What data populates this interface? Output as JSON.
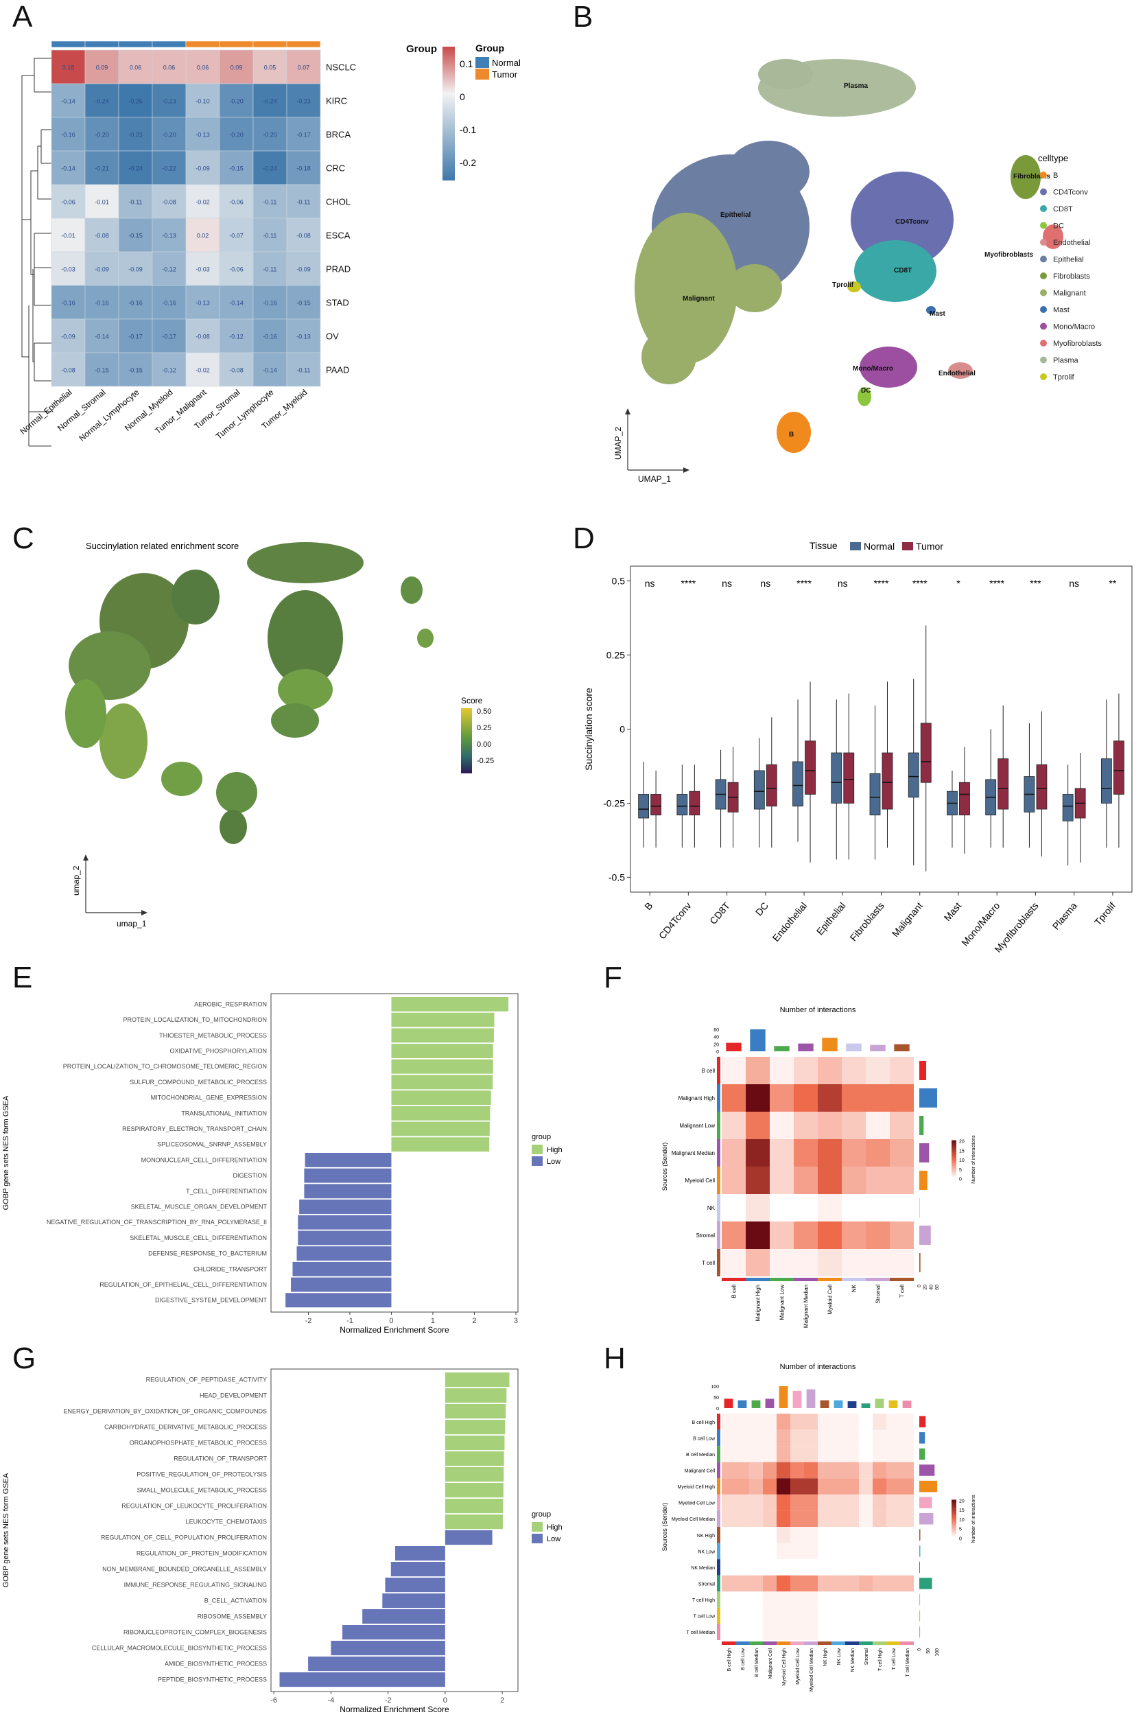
{
  "panels": {
    "A": "A",
    "B": "B",
    "C": "C",
    "D": "D",
    "E": "E",
    "F": "F",
    "G": "G",
    "H": "H"
  },
  "panel_a": {
    "legend_group_title": "Group",
    "legend_items": [
      {
        "label": "Normal",
        "color": "#3f7fb5"
      },
      {
        "label": "Tumor",
        "color": "#ee8a2b"
      }
    ],
    "scale_ticks": [
      "0.1",
      "0",
      "-0.1",
      "-0.2"
    ],
    "column_group_label": "Group"
  },
  "panel_b": {
    "legend_title": "celltype",
    "axis_x": "UMAP_1",
    "axis_y": "UMAP_2",
    "cluster_labels": [
      "Plasma",
      "Epithelial",
      "CD4Tconv",
      "CD8T",
      "Tprolif",
      "Malignant",
      "Fibroblasts",
      "Myofibroblasts",
      "Mast",
      "Mono/Macro",
      "DC",
      "Endothelial",
      "B"
    ],
    "legend": [
      {
        "label": "B",
        "color": "#f08a1c"
      },
      {
        "label": "CD4Tconv",
        "color": "#6a6fb0"
      },
      {
        "label": "CD8T",
        "color": "#3aa8a6"
      },
      {
        "label": "DC",
        "color": "#8cc63f"
      },
      {
        "label": "Endothelial",
        "color": "#d98c8c"
      },
      {
        "label": "Epithelial",
        "color": "#6c7fa3"
      },
      {
        "label": "Fibroblasts",
        "color": "#7a9a3a"
      },
      {
        "label": "Malignant",
        "color": "#9aae6a"
      },
      {
        "label": "Mast",
        "color": "#3a6fb0"
      },
      {
        "label": "Mono/Macro",
        "color": "#9c4fa0"
      },
      {
        "label": "Myofibroblasts",
        "color": "#e07070"
      },
      {
        "label": "Plasma",
        "color": "#a8b898"
      },
      {
        "label": "Tprolif",
        "color": "#c8c820"
      }
    ]
  },
  "panel_c": {
    "title": "Succinylation related enrichment score",
    "legend_title": "Score",
    "legend_ticks": [
      "0.50",
      "0.25",
      "0.00",
      "-0.25"
    ],
    "axis_x": "umap_1",
    "axis_y": "umap_2"
  },
  "panel_e": {
    "legend_title": "group",
    "legend_items": [
      {
        "label": "High",
        "color": "#a6d17a"
      },
      {
        "label": "Low",
        "color": "#6575b8"
      }
    ]
  },
  "panel_f": {
    "title": "Number of interactions",
    "ylabel": "Sources (Sender)",
    "legend_title": "Number of interactions",
    "legend_ticks": [
      "20",
      "15",
      "10",
      "5",
      "0"
    ]
  },
  "panel_g": {
    "legend_title": "group",
    "legend_items": [
      {
        "label": "High",
        "color": "#a6d17a"
      },
      {
        "label": "Low",
        "color": "#6575b8"
      }
    ]
  },
  "panel_h": {
    "title": "Number of interactions",
    "ylabel": "Sources (Sender)",
    "legend_title": "Number of interactions",
    "legend_ticks": [
      "20",
      "15",
      "10",
      "5",
      "0"
    ]
  },
  "chart_data": [
    {
      "id": "A",
      "type": "heatmap",
      "columns": [
        "Normal_Epithelial",
        "Normal_Stromal",
        "Normal_Lymphocyte",
        "Normal_Myeloid",
        "Tumor_Malignant",
        "Tumor_Stromal",
        "Tumor_Lymphocyte",
        "Tumor_Myeloid"
      ],
      "column_groups": [
        "Normal",
        "Normal",
        "Normal",
        "Normal",
        "Tumor",
        "Tumor",
        "Tumor",
        "Tumor"
      ],
      "rows": [
        "NSCLC",
        "KIRC",
        "BRCA",
        "CRC",
        "CHOL",
        "ESCA",
        "PRAD",
        "STAD",
        "OV",
        "PAAD"
      ],
      "values": [
        [
          0.18,
          0.09,
          0.06,
          0.06,
          0.06,
          0.09,
          0.05,
          0.07
        ],
        [
          -0.14,
          -0.24,
          -0.26,
          -0.23,
          -0.1,
          -0.2,
          -0.24,
          -0.23
        ],
        [
          -0.16,
          -0.2,
          -0.23,
          -0.2,
          -0.13,
          -0.2,
          -0.2,
          -0.17
        ],
        [
          -0.14,
          -0.21,
          -0.24,
          -0.22,
          -0.09,
          -0.15,
          -0.24,
          -0.18
        ],
        [
          -0.06,
          -0.01,
          -0.11,
          -0.08,
          -0.02,
          -0.06,
          -0.11,
          -0.11
        ],
        [
          -0.01,
          -0.08,
          -0.15,
          -0.13,
          0.02,
          -0.07,
          -0.11,
          -0.08
        ],
        [
          -0.03,
          -0.09,
          -0.09,
          -0.12,
          -0.03,
          -0.06,
          -0.11,
          -0.09
        ],
        [
          -0.16,
          -0.16,
          -0.16,
          -0.16,
          -0.13,
          -0.14,
          -0.16,
          -0.15
        ],
        [
          -0.09,
          -0.14,
          -0.17,
          -0.17,
          -0.08,
          -0.12,
          -0.16,
          -0.13
        ],
        [
          -0.08,
          -0.15,
          -0.15,
          -0.12,
          -0.02,
          -0.08,
          -0.14,
          -0.11
        ]
      ],
      "color_range": [
        -0.25,
        0.18
      ]
    },
    {
      "id": "D",
      "type": "box",
      "legend_title": "Tissue",
      "series": [
        {
          "name": "Normal",
          "color": "#4a6b8f"
        },
        {
          "name": "Tumor",
          "color": "#8e2c44"
        }
      ],
      "ylabel": "Succinylation score",
      "yticks": [
        0.5,
        0.25,
        0.0,
        -0.25,
        -0.5
      ],
      "ylim": [
        -0.55,
        0.55
      ],
      "categories": [
        "B",
        "CD4Tconv",
        "CD8T",
        "DC",
        "Endothelial",
        "Epithelial",
        "Fibroblasts",
        "Malignant",
        "Mast",
        "Mono/Macro",
        "Myofibroblasts",
        "Plasma",
        "Tprolif"
      ],
      "significance": [
        "ns",
        "****",
        "ns",
        "ns",
        "****",
        "ns",
        "****",
        "****",
        "*",
        "****",
        "***",
        "ns",
        "**"
      ],
      "normal": [
        [
          -0.4,
          -0.3,
          -0.27,
          -0.22,
          -0.11
        ],
        [
          -0.4,
          -0.29,
          -0.26,
          -0.22,
          -0.12
        ],
        [
          -0.4,
          -0.27,
          -0.22,
          -0.17,
          -0.07
        ],
        [
          -0.4,
          -0.27,
          -0.21,
          -0.14,
          -0.03
        ],
        [
          -0.38,
          -0.26,
          -0.19,
          -0.11,
          0.1
        ],
        [
          -0.44,
          -0.25,
          -0.18,
          -0.08,
          0.1
        ],
        [
          -0.44,
          -0.29,
          -0.23,
          -0.15,
          0.08
        ],
        [
          -0.46,
          -0.23,
          -0.16,
          -0.08,
          0.17
        ],
        [
          -0.4,
          -0.29,
          -0.25,
          -0.21,
          -0.14
        ],
        [
          -0.4,
          -0.29,
          -0.23,
          -0.17,
          0.0
        ],
        [
          -0.4,
          -0.28,
          -0.22,
          -0.16,
          0.02
        ],
        [
          -0.46,
          -0.31,
          -0.26,
          -0.22,
          -0.12
        ],
        [
          -0.4,
          -0.25,
          -0.2,
          -0.1,
          0.1
        ]
      ],
      "tumor": [
        [
          -0.4,
          -0.29,
          -0.26,
          -0.22,
          -0.14
        ],
        [
          -0.4,
          -0.29,
          -0.26,
          -0.21,
          -0.12
        ],
        [
          -0.4,
          -0.28,
          -0.23,
          -0.18,
          -0.06
        ],
        [
          -0.4,
          -0.26,
          -0.2,
          -0.12,
          0.04
        ],
        [
          -0.45,
          -0.22,
          -0.14,
          -0.04,
          0.16
        ],
        [
          -0.44,
          -0.25,
          -0.17,
          -0.08,
          0.12
        ],
        [
          -0.4,
          -0.27,
          -0.18,
          -0.08,
          0.16
        ],
        [
          -0.48,
          -0.18,
          -0.11,
          0.02,
          0.35
        ],
        [
          -0.42,
          -0.29,
          -0.22,
          -0.18,
          -0.06
        ],
        [
          -0.4,
          -0.27,
          -0.2,
          -0.1,
          0.08
        ],
        [
          -0.43,
          -0.27,
          -0.2,
          -0.12,
          0.06
        ],
        [
          -0.45,
          -0.3,
          -0.25,
          -0.2,
          -0.08
        ],
        [
          -0.4,
          -0.22,
          -0.14,
          -0.04,
          0.12
        ]
      ]
    },
    {
      "id": "E",
      "type": "bar",
      "ylabel": "GOBP gene sets NES form GSEA",
      "xlabel": "Normalized Enrichment Score",
      "xticks": [
        -2,
        -1,
        0,
        1,
        2,
        3
      ],
      "xlim": [
        -2.9,
        3.05
      ],
      "categories": [
        "AEROBIC_RESPIRATION",
        "PROTEIN_LOCALIZATION_TO_MITOCHONDRION",
        "THIOESTER_METABOLIC_PROCESS",
        "OXIDATIVE_PHOSPHORYLATION",
        "PROTEIN_LOCALIZATION_TO_CHROMOSOME_TELOMERIC_REGION",
        "SULFUR_COMPOUND_METABOLIC_PROCESS",
        "MITOCHONDRIAL_GENE_EXPRESSION",
        "TRANSLATIONAL_INITIATION",
        "RESPIRATORY_ELECTRON_TRANSPORT_CHAIN",
        "SPLICEOSOMAL_SNRNP_ASSEMBLY",
        "MONONUCLEAR_CELL_DIFFERENTIATION",
        "DIGESTION",
        "T_CELL_DIFFERENTIATION",
        "SKELETAL_MUSCLE_ORGAN_DEVELOPMENT",
        "NEGATIVE_REGULATION_OF_TRANSCRIPTION_BY_RNA_POLYMERASE_II",
        "SKELETAL_MUSCLE_CELL_DIFFERENTIATION",
        "DEFENSE_RESPONSE_TO_BACTERIUM",
        "CHLORIDE_TRANSPORT",
        "REGULATION_OF_EPITHELIAL_CELL_DIFFERENTIATION",
        "DIGESTIVE_SYSTEM_DEVELOPMENT"
      ],
      "values": [
        2.82,
        2.48,
        2.47,
        2.45,
        2.45,
        2.44,
        2.4,
        2.38,
        2.37,
        2.36,
        -2.08,
        -2.1,
        -2.1,
        -2.22,
        -2.25,
        -2.25,
        -2.28,
        -2.38,
        -2.42,
        -2.55
      ],
      "groups": [
        "High",
        "High",
        "High",
        "High",
        "High",
        "High",
        "High",
        "High",
        "High",
        "High",
        "Low",
        "Low",
        "Low",
        "Low",
        "Low",
        "Low",
        "Low",
        "Low",
        "Low",
        "Low"
      ]
    },
    {
      "id": "F",
      "type": "heatmap",
      "rows": [
        "B cell",
        "Malignant High",
        "Malignant Low",
        "Malignant Median",
        "Myeloid Cell",
        "NK",
        "Stromal",
        "T cell"
      ],
      "columns": [
        "B cell",
        "Malignant High",
        "Malignant Low",
        "Malignant Median",
        "Myeloid Cell",
        "NK",
        "Stromal",
        "T cell"
      ],
      "values": [
        [
          1,
          6,
          1,
          3,
          5,
          3,
          2,
          3
        ],
        [
          10,
          22,
          8,
          11,
          16,
          10,
          10,
          10
        ],
        [
          3,
          10,
          1,
          4,
          5,
          4,
          1,
          4
        ],
        [
          5,
          19,
          3,
          9,
          12,
          7,
          8,
          6
        ],
        [
          5,
          17,
          3,
          7,
          12,
          6,
          5,
          5
        ],
        [
          0,
          2,
          0,
          0,
          1,
          0,
          0,
          0
        ],
        [
          8,
          22,
          4,
          8,
          11,
          7,
          8,
          6
        ],
        [
          1,
          5,
          1,
          1,
          2,
          1,
          1,
          1
        ]
      ],
      "color_range": [
        0,
        22
      ],
      "row_colors": [
        "#e42626",
        "#3a7dc2",
        "#4caa4c",
        "#9c55a8",
        "#ef8c19",
        "#c8c8ec",
        "#c9a3d3",
        "#a9552b"
      ],
      "top_bars": [
        24,
        62,
        15,
        22,
        38,
        22,
        18,
        20
      ],
      "right_bars": [
        24,
        62,
        15,
        34,
        28,
        2,
        40,
        4
      ],
      "top_axis": [
        "60",
        "40",
        "20",
        "0"
      ],
      "right_axis": [
        "0",
        "20",
        "40",
        "60"
      ]
    },
    {
      "id": "G",
      "type": "bar",
      "ylabel": "GOBP gene sets NES form GSEA",
      "xlabel": "Normalized Enrichment Score",
      "xticks": [
        -6,
        -4,
        -2,
        0,
        2
      ],
      "xlim": [
        -6.1,
        2.55
      ],
      "categories": [
        "REGULATION_OF_PEPTIDASE_ACTIVITY",
        "HEAD_DEVELOPMENT",
        "ENERGY_DERIVATION_BY_OXIDATION_OF_ORGANIC_COMPOUNDS",
        "CARBOHYDRATE_DERIVATIVE_METABOLIC_PROCESS",
        "ORGANOPHOSPHATE_METABOLIC_PROCESS",
        "REGULATION_OF_TRANSPORT",
        "POSITIVE_REGULATION_OF_PROTEOLYSIS",
        "SMALL_MOLECULE_METABOLIC_PROCESS",
        "REGULATION_OF_LEUKOCYTE_PROLIFERATION",
        "LEUKOCYTE_CHEMOTAXIS",
        "REGULATION_OF_CELL_POPULATION_PROLIFERATION",
        "REGULATION_OF_PROTEIN_MODIFICATION",
        "NON_MEMBRANE_BOUNDED_ORGANELLE_ASSEMBLY",
        "IMMUNE_RESPONSE_REGULATING_SIGNALING",
        "B_CELL_ACTIVATION",
        "RIBOSOME_ASSEMBLY",
        "RIBONUCLEOPROTEIN_COMPLEX_BIOGENESIS",
        "CELLULAR_MACROMOLECULE_BIOSYNTHETIC_PROCESS",
        "AMIDE_BIOSYNTHETIC_PROCESS",
        "PEPTIDE_BIOSYNTHETIC_PROCESS"
      ],
      "values": [
        2.25,
        2.15,
        2.12,
        2.1,
        2.08,
        2.06,
        2.05,
        2.04,
        2.03,
        2.02,
        1.65,
        -1.75,
        -1.9,
        -2.1,
        -2.2,
        -2.9,
        -3.6,
        -4.0,
        -4.8,
        -5.8
      ],
      "groups": [
        "High",
        "High",
        "High",
        "High",
        "High",
        "High",
        "High",
        "High",
        "High",
        "High",
        "Low",
        "Low",
        "Low",
        "Low",
        "Low",
        "Low",
        "Low",
        "Low",
        "Low",
        "Low"
      ]
    },
    {
      "id": "H",
      "type": "heatmap",
      "rows": [
        "B cell High",
        "B cell Low",
        "B cell Median",
        "Malignant Cell",
        "Myeloid Cell High",
        "Myeloid Cell Low",
        "Myeloid Cell Median",
        "NK High",
        "NK Low",
        "NK Median",
        "Stromal",
        "T cell High",
        "T cell Low",
        "T cell Median"
      ],
      "columns": [
        "B cell High",
        "B cell Low",
        "B cell Median",
        "Malignant Cell",
        "Myeloid Cell High",
        "Myeloid Cell Low",
        "Myeloid Cell Median",
        "NK High",
        "NK Low",
        "NK Median",
        "Stromal",
        "T cell High",
        "T cell Low",
        "T cell Median"
      ],
      "values": [
        [
          1,
          1,
          1,
          1,
          7,
          4,
          4,
          1,
          1,
          1,
          0,
          2,
          1,
          1
        ],
        [
          1,
          1,
          1,
          1,
          6,
          3,
          3,
          1,
          1,
          1,
          0,
          1,
          1,
          1
        ],
        [
          1,
          1,
          1,
          1,
          6,
          3,
          3,
          1,
          1,
          1,
          0,
          1,
          1,
          1
        ],
        [
          6,
          6,
          5,
          8,
          14,
          10,
          11,
          6,
          6,
          6,
          3,
          7,
          6,
          6
        ],
        [
          7,
          7,
          6,
          10,
          24,
          18,
          18,
          7,
          7,
          7,
          3,
          10,
          8,
          8
        ],
        [
          3,
          3,
          3,
          4,
          12,
          9,
          9,
          3,
          3,
          3,
          1,
          4,
          3,
          3
        ],
        [
          3,
          3,
          3,
          4,
          12,
          9,
          9,
          3,
          3,
          3,
          1,
          4,
          3,
          3
        ],
        [
          0,
          0,
          0,
          0,
          2,
          1,
          1,
          0,
          0,
          0,
          0,
          0,
          0,
          0
        ],
        [
          0,
          0,
          0,
          0,
          1,
          1,
          1,
          0,
          0,
          0,
          0,
          0,
          0,
          0
        ],
        [
          0,
          0,
          0,
          0,
          0,
          0,
          0,
          0,
          0,
          0,
          0,
          0,
          0,
          0
        ],
        [
          5,
          5,
          5,
          7,
          12,
          9,
          9,
          5,
          5,
          5,
          6,
          5,
          5,
          5
        ],
        [
          0,
          0,
          0,
          1,
          1,
          1,
          1,
          0,
          0,
          0,
          0,
          0,
          0,
          0
        ],
        [
          0,
          0,
          0,
          1,
          1,
          1,
          1,
          0,
          0,
          0,
          0,
          0,
          0,
          0
        ],
        [
          0,
          0,
          0,
          1,
          1,
          1,
          1,
          0,
          0,
          0,
          0,
          0,
          0,
          0
        ]
      ],
      "color_range": [
        0,
        24
      ],
      "row_colors": [
        "#e42626",
        "#3a7dc2",
        "#4caa4c",
        "#9c55a8",
        "#ef8c19",
        "#f2a6c4",
        "#c9a3d3",
        "#a9552b",
        "#4ea8dc",
        "#1e3e8c",
        "#2aa07a",
        "#a6d17a",
        "#e4c21a",
        "#ee8cab"
      ],
      "top_bars": [
        30,
        25,
        25,
        30,
        70,
        55,
        60,
        25,
        25,
        22,
        15,
        30,
        25,
        24
      ],
      "right_bars": [
        25,
        22,
        22,
        60,
        70,
        50,
        55,
        4,
        4,
        2,
        50,
        3,
        3,
        3
      ],
      "top_axis": [
        "100",
        "50",
        "0"
      ],
      "right_axis": [
        "0",
        "50",
        "100"
      ]
    }
  ]
}
